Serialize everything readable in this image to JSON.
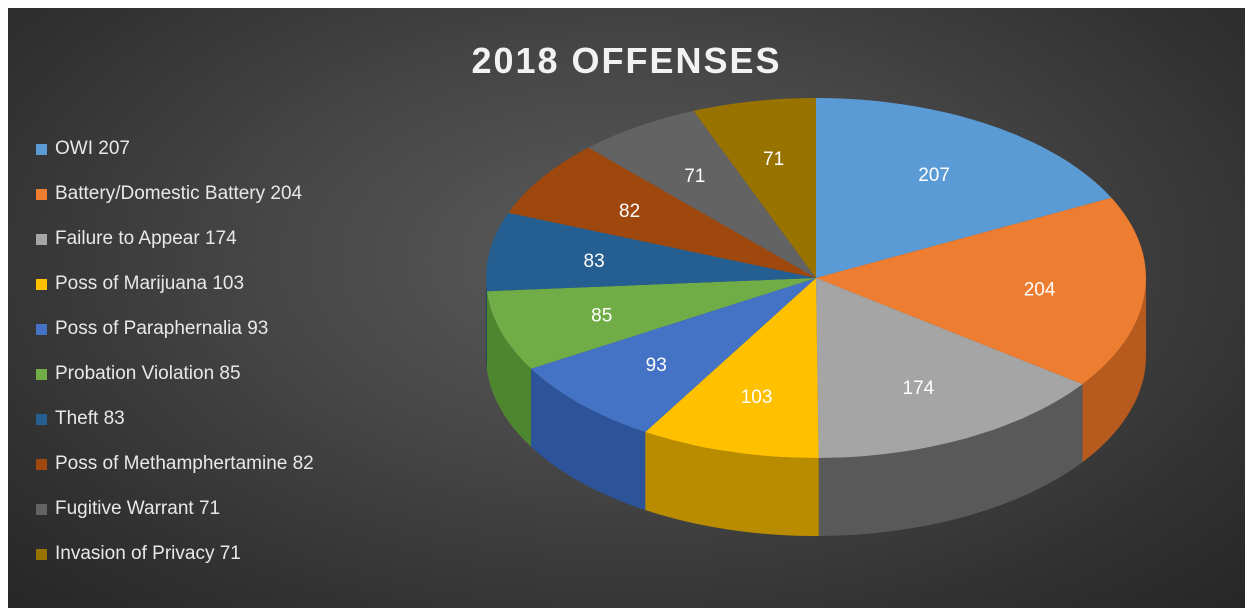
{
  "chart_data": {
    "type": "pie",
    "title": "2018 OFFENSES",
    "legend_position": "left",
    "slices": [
      {
        "label": "OWI",
        "value": 207,
        "legend": "OWI 207",
        "data_label": "207",
        "color": "#5b9bd5",
        "side": "#3a76ab"
      },
      {
        "label": "Battery/Domestic Battery",
        "value": 204,
        "legend": "Battery/Domestic Battery 204",
        "data_label": "204",
        "color": "#ed7d31",
        "side": "#b65a1d"
      },
      {
        "label": "Failure to Appear",
        "value": 174,
        "legend": "Failure to Appear 174",
        "data_label": "174",
        "color": "#a5a5a5",
        "side": "#595959"
      },
      {
        "label": "Poss of Marijuana",
        "value": 103,
        "legend": "Poss of Marijuana 103",
        "data_label": "103",
        "color": "#ffc000",
        "side": "#b98c00"
      },
      {
        "label": "Poss of Paraphernalia",
        "value": 93,
        "legend": "Poss of Paraphernalia 93",
        "data_label": "93",
        "color": "#4472c4",
        "side": "#2d539a"
      },
      {
        "label": "Probation Violation",
        "value": 85,
        "legend": "Probation Violation 85",
        "data_label": "85",
        "color": "#70ad47",
        "side": "#4e8630"
      },
      {
        "label": "Theft",
        "value": 83,
        "legend": "Theft 83",
        "data_label": "83",
        "color": "#255e91",
        "side": "#173f63"
      },
      {
        "label": "Poss of Methamphertamine",
        "value": 82,
        "legend": "Poss of Methamphertamine 82",
        "data_label": "82",
        "color": "#9e480e",
        "side": "#6e3109"
      },
      {
        "label": "Fugitive Warrant",
        "value": 71,
        "legend": "Fugitive Warrant 71",
        "data_label": "71",
        "color": "#636363",
        "side": "#424242"
      },
      {
        "label": "Invasion of Privacy",
        "value": 71,
        "legend": "Invasion of Privacy 71",
        "data_label": "71",
        "color": "#997300",
        "side": "#6b5000"
      }
    ]
  }
}
